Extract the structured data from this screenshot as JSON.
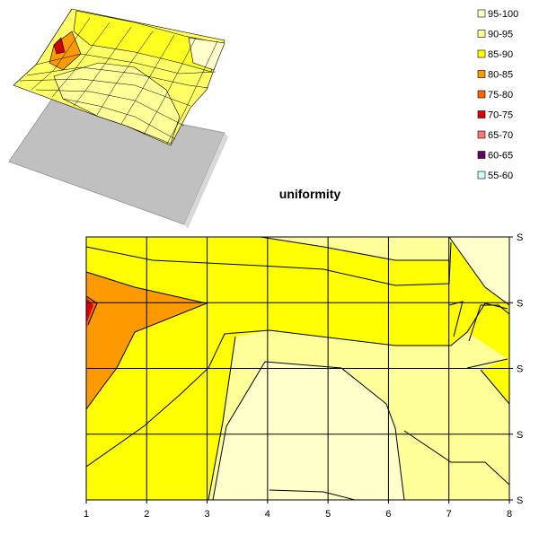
{
  "chart_data": [
    {
      "type": "surface-3d",
      "title": "",
      "xlabel": "",
      "ylabel": "",
      "legend_position": "right"
    },
    {
      "type": "contour",
      "title": "uniformity",
      "xlabel": "",
      "ylabel": "",
      "x_ticks": [
        "1",
        "2",
        "3",
        "4",
        "5",
        "6",
        "7",
        "8"
      ],
      "y_ticks": [
        "S",
        "S",
        "S",
        "S",
        "S"
      ],
      "xlim": [
        1,
        8
      ],
      "grid": true,
      "legend_position": "top-right",
      "legend": [
        {
          "label": "95-100",
          "color": "#ffffcc"
        },
        {
          "label": "90-95",
          "color": "#ffff99"
        },
        {
          "label": "85-90",
          "color": "#ffff00"
        },
        {
          "label": "80-85",
          "color": "#ff9900"
        },
        {
          "label": "75-80",
          "color": "#ff6600"
        },
        {
          "label": "70-75",
          "color": "#dd0000"
        },
        {
          "label": "65-70",
          "color": "#ff7777"
        },
        {
          "label": "60-65",
          "color": "#660066"
        },
        {
          "label": "55-60",
          "color": "#ccffff"
        }
      ],
      "regions": [
        {
          "band": "85-90",
          "color": "#ffff00"
        },
        {
          "band": "90-95",
          "color": "#ffff99"
        },
        {
          "band": "95-100",
          "color": "#ffffcc"
        },
        {
          "band": "80-85",
          "color": "#ff9900"
        },
        {
          "band": "75-80",
          "color": "#ff6600"
        },
        {
          "band": "70-75",
          "color": "#dd0000"
        }
      ]
    }
  ]
}
